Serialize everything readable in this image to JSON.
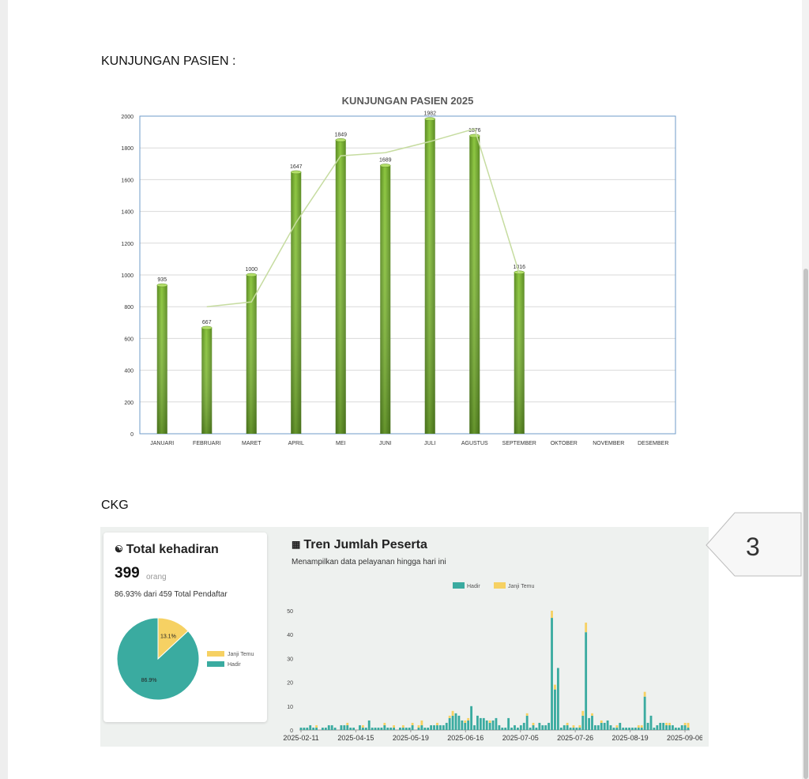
{
  "headings": {
    "kunjungan": "KUNJUNGAN PASIEN :",
    "ckg": "CKG"
  },
  "chart_data": [
    {
      "type": "bar",
      "title": "KUNJUNGAN PASIEN 2025",
      "categories": [
        "JANUARI",
        "FEBRUARI",
        "MARET",
        "APRIL",
        "MEI",
        "JUNI",
        "JULI",
        "AGUSTUS",
        "SEPTEMBER",
        "OKTOBER",
        "NOVEMBER",
        "DESEMBER"
      ],
      "values": [
        935,
        667,
        1000,
        1647,
        1849,
        1689,
        1982,
        1876,
        1016,
        null,
        null,
        null
      ],
      "trendline": {
        "type": "line",
        "x_from": "FEBRUARI",
        "x_to": "OKTOBER",
        "values": [
          800,
          830,
          1330,
          1750,
          1770,
          1840,
          1920,
          1010
        ]
      },
      "ylim": [
        0,
        2000
      ],
      "yticks": [
        0,
        200,
        400,
        600,
        800,
        1000,
        1200,
        1400,
        1600,
        1800,
        2000
      ],
      "grid": true,
      "colors": {
        "bar": "#8cc63f",
        "bar_dark": "#5a8a22",
        "trend": "#c6dca0",
        "grid": "#d9d9d9",
        "border": "#6f9bc8"
      }
    },
    {
      "type": "pie",
      "slices": [
        {
          "label": "Janji Temu",
          "value": 13.1,
          "text": "13.1%",
          "color": "#f6d163"
        },
        {
          "label": "Hadir",
          "value": 86.9,
          "text": "86.9%",
          "color": "#3aaba0"
        }
      ]
    },
    {
      "type": "bar",
      "stacked": true,
      "title": "Tren Jumlah Peserta",
      "x_ticks": [
        "2025-02-11",
        "2025-04-15",
        "2025-05-19",
        "2025-06-16",
        "2025-07-05",
        "2025-07-26",
        "2025-08-19",
        "2025-09-06"
      ],
      "ylim": [
        0,
        50
      ],
      "yticks": [
        0,
        10,
        20,
        30,
        40,
        50
      ],
      "legend_position": "top",
      "series": [
        {
          "name": "Hadir",
          "color": "#3aaba0",
          "values": [
            1,
            1,
            1,
            2,
            1,
            1,
            0,
            1,
            1,
            2,
            2,
            1,
            0,
            2,
            2,
            2,
            1,
            1,
            0,
            2,
            1,
            1,
            4,
            1,
            1,
            1,
            1,
            2,
            1,
            1,
            1,
            0,
            1,
            1,
            1,
            1,
            2,
            0,
            1,
            2,
            1,
            1,
            2,
            2,
            2,
            2,
            2,
            3,
            5,
            6,
            7,
            6,
            4,
            3,
            4,
            10,
            2,
            6,
            5,
            5,
            4,
            3,
            4,
            5,
            2,
            1,
            1,
            5,
            1,
            2,
            1,
            2,
            3,
            6,
            1,
            2,
            1,
            3,
            2,
            2,
            3,
            47,
            17,
            26,
            1,
            2,
            2,
            1,
            1,
            1,
            1,
            6,
            41,
            5,
            6,
            2,
            2,
            3,
            3,
            4,
            2,
            1,
            1,
            3,
            1,
            1,
            1,
            1,
            1,
            1,
            1,
            14,
            3,
            6,
            1,
            2,
            3,
            3,
            2,
            2,
            2,
            1,
            1,
            2,
            2,
            1
          ]
        },
        {
          "name": "Janji Temu",
          "color": "#f6d163",
          "values": [
            0,
            0,
            0,
            0,
            0,
            1,
            0,
            0,
            0,
            0,
            0,
            0,
            0,
            0,
            0,
            1,
            0,
            0,
            0,
            0,
            1,
            0,
            0,
            0,
            0,
            0,
            0,
            1,
            0,
            0,
            1,
            0,
            0,
            1,
            0,
            0,
            1,
            0,
            1,
            2,
            0,
            0,
            0,
            0,
            1,
            0,
            0,
            0,
            1,
            2,
            0,
            0,
            0,
            1,
            1,
            0,
            0,
            0,
            0,
            0,
            0,
            1,
            0,
            0,
            0,
            0,
            0,
            0,
            0,
            0,
            0,
            0,
            0,
            1,
            0,
            1,
            0,
            0,
            0,
            0,
            0,
            3,
            2,
            0,
            0,
            0,
            1,
            0,
            1,
            0,
            1,
            2,
            4,
            0,
            1,
            0,
            0,
            1,
            0,
            0,
            0,
            0,
            1,
            0,
            0,
            0,
            0,
            0,
            0,
            1,
            1,
            2,
            0,
            0,
            0,
            0,
            0,
            0,
            1,
            1,
            0,
            0,
            0,
            0,
            1,
            2
          ]
        }
      ]
    }
  ],
  "ckg": {
    "card": {
      "icon": "people-icon",
      "title": "Total kehadiran",
      "count": "399",
      "unit": "orang",
      "pct_line": "86.93% dari 459 Total Pendaftar",
      "legend": [
        "Janji Temu",
        "Hadir"
      ]
    },
    "trend": {
      "icon": "chart-icon",
      "title": "Tren Jumlah Peserta",
      "subtitle": "Menampilkan data pelayanan hingga hari ini",
      "legend": [
        "Hadir",
        "Janji Temu"
      ]
    }
  },
  "callout": {
    "number": "3"
  }
}
